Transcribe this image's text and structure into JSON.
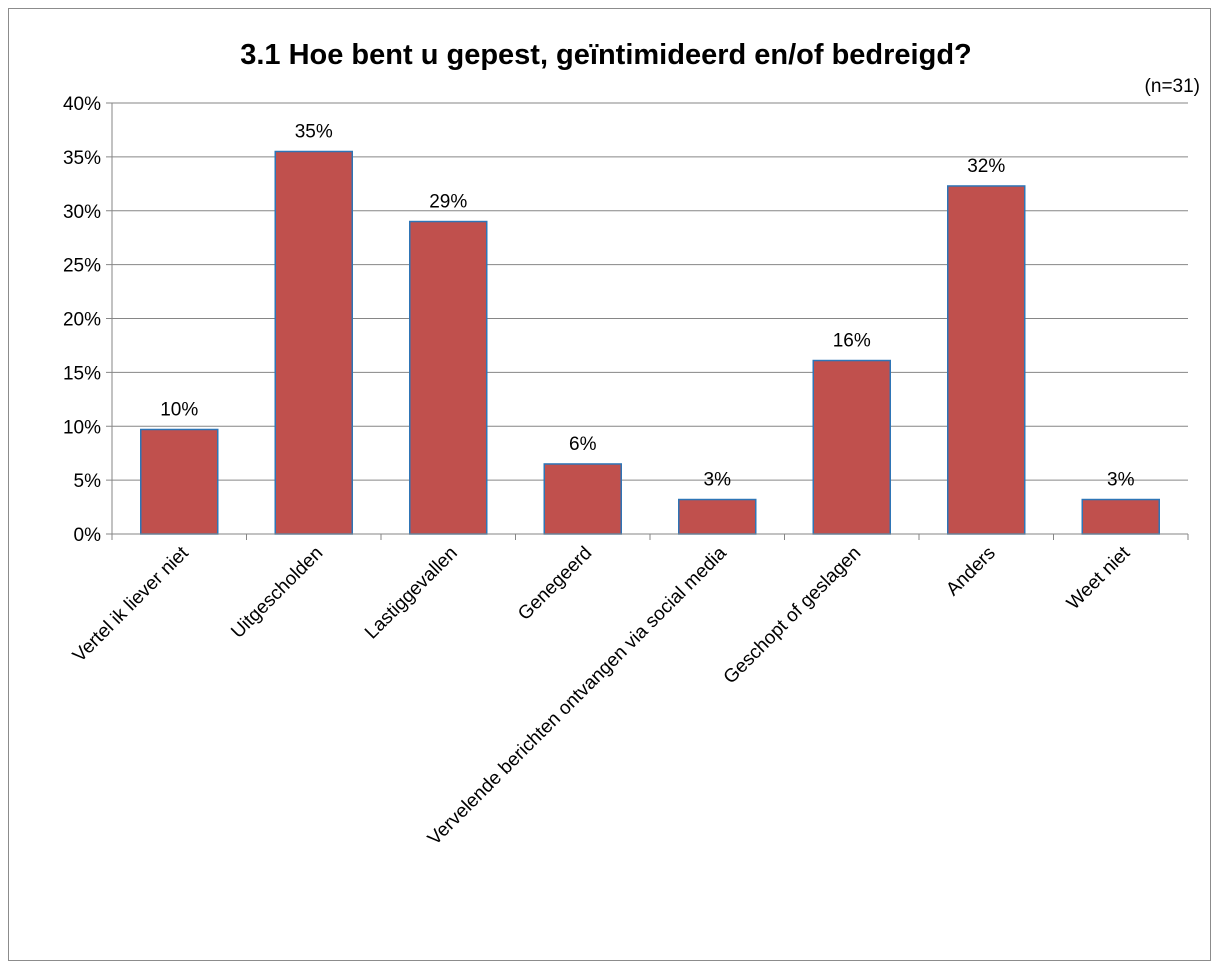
{
  "chart_data": {
    "type": "bar",
    "title": "3.1 Hoe bent u gepest, geïntimideerd en/of bedreigd?",
    "note": "(n=31)",
    "xlabel": "",
    "ylabel": "",
    "ylim": [
      0,
      40
    ],
    "yticks": [
      "0%",
      "5%",
      "10%",
      "15%",
      "20%",
      "25%",
      "30%",
      "35%",
      "40%"
    ],
    "grid": true,
    "legend": "none",
    "categories": [
      "Vertel ik liever niet",
      "Uitgescholden",
      "Lastiggevallen",
      "Genegeerd",
      "Vervelende berichten ontvangen via social media",
      "Geschopt of geslagen",
      "Anders",
      "Weet niet"
    ],
    "values": [
      9.7,
      35.5,
      29.0,
      6.5,
      3.2,
      16.1,
      32.3,
      3.2
    ],
    "data_labels": [
      "10%",
      "35%",
      "29%",
      "6%",
      "3%",
      "16%",
      "32%",
      "3%"
    ],
    "colors": {
      "bar": "#c0504d",
      "bar_border": "#2e75b6",
      "grid": "#868686",
      "axis": "#868686"
    }
  }
}
